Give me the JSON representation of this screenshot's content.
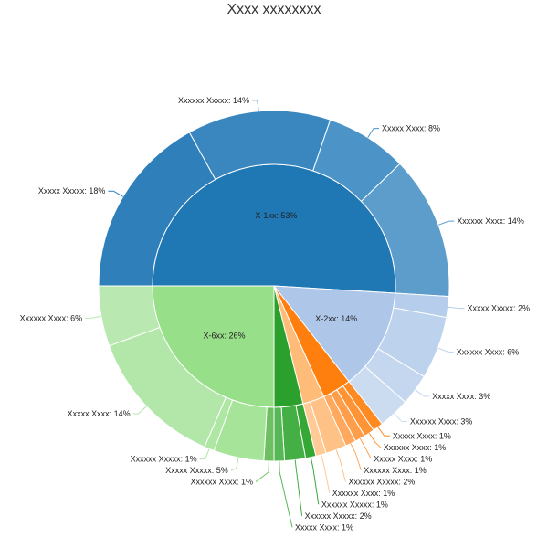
{
  "chart_data": {
    "type": "sunburst",
    "title": "Xxxx xxxxxxxx",
    "groups": [
      {
        "label": "X-1xx: 53%",
        "value": 53,
        "color": "#1f77b4",
        "children": [
          {
            "label": "Xxxxx Xxxxx: 18%",
            "value": 18,
            "color": "#2e7fba"
          },
          {
            "label": "Xxxxxx Xxxxx: 14%",
            "value": 14,
            "color": "#3a87c0"
          },
          {
            "label": "Xxxxx Xxxx: 8%",
            "value": 8,
            "color": "#4c93c7"
          },
          {
            "label": "Xxxxxx Xxxx: 14%",
            "value": 14,
            "color": "#5c9dcc"
          }
        ]
      },
      {
        "label": "X-2xx: 14%",
        "value": 14,
        "color": "#aec7e8",
        "children": [
          {
            "label": "Xxxxx Xxxxx: 2%",
            "value": 2,
            "color": "#b6cdeb"
          },
          {
            "label": "Xxxxxx Xxxx: 6%",
            "value": 6,
            "color": "#bdd2ed"
          },
          {
            "label": "Xxxxx Xxxx: 3%",
            "value": 3,
            "color": "#c4d7ef"
          },
          {
            "label": "Xxxxxx Xxxx: 3%",
            "value": 3,
            "color": "#cbdcf1"
          }
        ]
      },
      {
        "label": "",
        "value": 4,
        "color": "#ff7f0e",
        "children": [
          {
            "label": "Xxxxx Xxxx: 1%",
            "value": 1,
            "color": "#ff8a22"
          },
          {
            "label": "Xxxxxx Xxxx: 1%",
            "value": 1,
            "color": "#ff9436"
          },
          {
            "label": "Xxxxx Xxxx: 1%",
            "value": 1,
            "color": "#ff9e4a"
          },
          {
            "label": "Xxxxxx Xxxx: 1%",
            "value": 1,
            "color": "#ffa85e"
          }
        ]
      },
      {
        "label": "",
        "value": 3,
        "color": "#ffbb78",
        "children": [
          {
            "label": "Xxxxxx Xxxxx: 2%",
            "value": 2,
            "color": "#ffc286"
          },
          {
            "label": "Xxxxxx Xxxx: 1%",
            "value": 1,
            "color": "#ffca95"
          }
        ]
      },
      {
        "label": "",
        "value": 4,
        "color": "#2ca02c",
        "children": [
          {
            "label": "Xxxxxx Xxxxx: 1%",
            "value": 1,
            "color": "#35a735"
          },
          {
            "label": "Xxxxxx Xxxxx: 2%",
            "value": 2,
            "color": "#44af44"
          },
          {
            "label": "Xxxxx Xxxx: 1%",
            "value": 1,
            "color": "#55b755"
          }
        ]
      },
      {
        "label": "X-6xx: 26%",
        "value": 26,
        "color": "#98df8a",
        "children": [
          {
            "label": "Xxxxxx Xxxx: 1%",
            "value": 1,
            "color": "#6dbf61"
          },
          {
            "label": "Xxxxx Xxxxx: 5%",
            "value": 5,
            "color": "#a6e49a"
          },
          {
            "label": "Xxxxxx Xxxxx: 1%",
            "value": 1,
            "color": "#aee6a3"
          },
          {
            "label": "Xxxxx Xxxx: 14%",
            "value": 14,
            "color": "#b3e7a9"
          },
          {
            "label": "Xxxxxx Xxxx: 6%",
            "value": 6,
            "color": "#b9e9b0"
          }
        ]
      }
    ]
  }
}
